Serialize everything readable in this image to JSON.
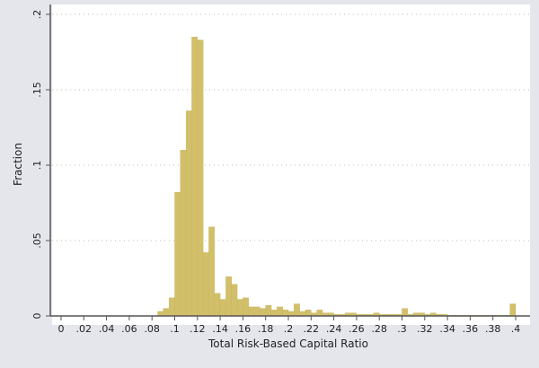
{
  "chart_data": {
    "type": "bar",
    "subtype": "histogram",
    "title": "",
    "xlabel": "Total Risk-Based Capital Ratio",
    "ylabel": "Fraction",
    "xlim": [
      0,
      0.4
    ],
    "ylim": [
      0,
      0.2
    ],
    "bin_width": 0.005,
    "grid": "horizontal dotted",
    "bar_color": "#d2bf6a",
    "x_ticks": [
      "0",
      ".02",
      ".04",
      ".06",
      ".08",
      ".1",
      ".12",
      ".14",
      ".16",
      ".18",
      ".2",
      ".22",
      ".24",
      ".26",
      ".28",
      ".3",
      ".32",
      ".34",
      ".36",
      ".38",
      ".4"
    ],
    "x_tick_values": [
      0,
      0.02,
      0.04,
      0.06,
      0.08,
      0.1,
      0.12,
      0.14,
      0.16,
      0.18,
      0.2,
      0.22,
      0.24,
      0.26,
      0.28,
      0.3,
      0.32,
      0.34,
      0.36,
      0.38,
      0.4
    ],
    "y_ticks": [
      "0",
      ".05",
      ".1",
      ".15",
      ".2"
    ],
    "y_tick_values": [
      0,
      0.05,
      0.1,
      0.15,
      0.2
    ],
    "bin_starts": [
      0.085,
      0.09,
      0.095,
      0.1,
      0.105,
      0.11,
      0.115,
      0.12,
      0.125,
      0.13,
      0.135,
      0.14,
      0.145,
      0.15,
      0.155,
      0.16,
      0.165,
      0.17,
      0.175,
      0.18,
      0.185,
      0.19,
      0.195,
      0.2,
      0.205,
      0.21,
      0.215,
      0.22,
      0.225,
      0.23,
      0.235,
      0.24,
      0.245,
      0.25,
      0.255,
      0.26,
      0.265,
      0.27,
      0.275,
      0.28,
      0.285,
      0.29,
      0.295,
      0.3,
      0.305,
      0.31,
      0.315,
      0.32,
      0.325,
      0.33,
      0.335,
      0.34,
      0.345,
      0.35,
      0.355,
      0.36,
      0.365,
      0.37,
      0.375,
      0.38,
      0.385,
      0.39,
      0.395
    ],
    "values": [
      0.003,
      0.005,
      0.012,
      0.082,
      0.11,
      0.136,
      0.185,
      0.183,
      0.042,
      0.059,
      0.015,
      0.011,
      0.026,
      0.021,
      0.011,
      0.012,
      0.006,
      0.006,
      0.005,
      0.007,
      0.004,
      0.006,
      0.004,
      0.003,
      0.008,
      0.003,
      0.004,
      0.002,
      0.004,
      0.002,
      0.002,
      0.001,
      0.001,
      0.002,
      0.002,
      0.001,
      0.001,
      0.001,
      0.002,
      0.001,
      0.001,
      0.001,
      0.001,
      0.005,
      0.001,
      0.002,
      0.002,
      0.001,
      0.002,
      0.001,
      0.001,
      0.0005,
      0.0005,
      0.0005,
      0.0005,
      0.0005,
      0.0005,
      0.0005,
      0.0005,
      0.0005,
      0.0005,
      0.0005,
      0.008
    ]
  }
}
